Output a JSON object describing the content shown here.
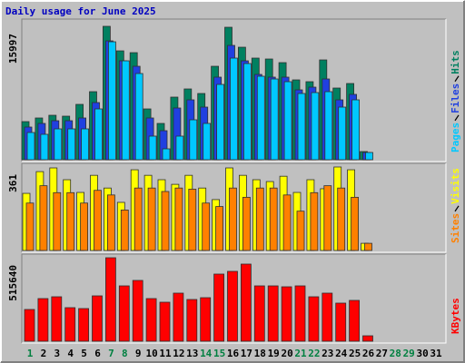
{
  "chart_data": [
    {
      "type": "bar",
      "title": "Daily usage for June 2025",
      "ylim": [
        0,
        15997
      ],
      "yticks": [
        15997
      ],
      "series": [
        {
          "name": "Hits",
          "color": "#008060",
          "values": [
            4570,
            5005,
            5331,
            5222,
            6637,
            8160,
            15997,
            13056,
            12838,
            6093,
            4352,
            7507,
            8486,
            7942,
            11206,
            15885,
            13491,
            12186,
            12077,
            11642,
            9574,
            9357,
            11968,
            8595,
            9139,
            979,
            0,
            0,
            0,
            0,
            0
          ]
        },
        {
          "name": "Files",
          "color": "#2040e0",
          "values": [
            3917,
            4352,
            4678,
            4678,
            5005,
            6854,
            14253,
            11859,
            11206,
            5005,
            3482,
            6202,
            7181,
            6310,
            9901,
            13709,
            11859,
            10227,
            9901,
            9901,
            8378,
            8704,
            9683,
            7181,
            7834,
            870,
            0,
            0,
            0,
            0,
            0
          ]
        },
        {
          "name": "Pages",
          "color": "#00c8ff",
          "values": [
            3264,
            3046,
            3699,
            3699,
            3699,
            6093,
            14144,
            11859,
            10336,
            2829,
            1306,
            2829,
            4787,
            4352,
            9030,
            12186,
            11533,
            10010,
            9683,
            9357,
            7942,
            8051,
            8160,
            6310,
            7181,
            870,
            0,
            0,
            0,
            0,
            0
          ]
        }
      ]
    },
    {
      "type": "bar",
      "ylim": [
        0,
        361
      ],
      "yticks": [
        361
      ],
      "series": [
        {
          "name": "Visits",
          "color": "#ffff00",
          "values": [
            247,
            341,
            357,
            306,
            251,
            325,
            270,
            208,
            349,
            325,
            306,
            286,
            325,
            270,
            220,
            357,
            325,
            306,
            298,
            321,
            251,
            306,
            267,
            361,
            349,
            31,
            0,
            0,
            0,
            0,
            0
          ]
        },
        {
          "name": "Sites",
          "color": "#ff8000",
          "values": [
            205,
            280,
            250,
            250,
            205,
            260,
            240,
            175,
            270,
            270,
            255,
            270,
            265,
            205,
            190,
            270,
            230,
            270,
            270,
            240,
            170,
            250,
            280,
            270,
            230,
            31,
            0,
            0,
            0,
            0,
            0
          ]
        }
      ]
    },
    {
      "type": "bar",
      "ylim": [
        0,
        515640
      ],
      "yticks": [
        515640
      ],
      "categories": [
        "1",
        "2",
        "3",
        "4",
        "5",
        "6",
        "7",
        "8",
        "9",
        "10",
        "11",
        "12",
        "13",
        "14",
        "15",
        "16",
        "17",
        "18",
        "19",
        "20",
        "21",
        "22",
        "23",
        "24",
        "25",
        "26",
        "27",
        "28",
        "29",
        "30",
        "31"
      ],
      "weekend_color": "#008040",
      "weekends": [
        0,
        6,
        7,
        13,
        14,
        20,
        21,
        27,
        28
      ],
      "series": [
        {
          "name": "KBytes",
          "color": "#ff0000",
          "values": [
            196175,
            263435,
            274645,
            207385,
            201780,
            280250,
            515640,
            341905,
            375535,
            263435,
            241015,
            297065,
            257830,
            269040,
            414770,
            431585,
            476425,
            341905,
            341905,
            336300,
            341905,
            274645,
            297065,
            235410,
            252225,
            33630,
            0,
            0,
            0,
            0,
            0
          ]
        }
      ]
    }
  ]
}
